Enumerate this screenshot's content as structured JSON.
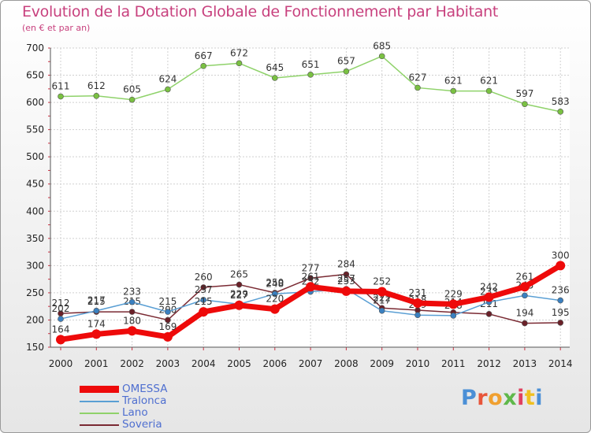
{
  "title": "Evolution de la Dotation Globale de Fonctionnement par Habitant",
  "subtitle": "(en € et par an)",
  "brand": "Proxiti",
  "brand_colors": [
    "#4a8fd6",
    "#e8553a",
    "#f0a030",
    "#5fb84a",
    "#e04060",
    "#f0c020",
    "#4a8fd6"
  ],
  "chart_data": {
    "type": "line",
    "x": [
      "2000",
      "2001",
      "2002",
      "2003",
      "2004",
      "2005",
      "2006",
      "2007",
      "2008",
      "2009",
      "2010",
      "2011",
      "2012",
      "2013",
      "2014"
    ],
    "ylim": [
      150,
      700
    ],
    "yticks": [
      150,
      200,
      250,
      300,
      350,
      400,
      450,
      500,
      550,
      600,
      650,
      700
    ],
    "grid": true,
    "legend_position": "bottom-left",
    "series": [
      {
        "name": "Lano",
        "color": "#8fd26a",
        "marker": "#7ac142",
        "values": [
          611,
          612,
          605,
          624,
          667,
          672,
          645,
          651,
          657,
          685,
          627,
          621,
          621,
          597,
          583
        ]
      },
      {
        "name": "Soveria",
        "color": "#7a2a33",
        "marker": "#6a2028",
        "values": [
          212,
          215,
          215,
          200,
          260,
          265,
          250,
          277,
          284,
          222,
          218,
          214,
          211,
          194,
          195
        ]
      },
      {
        "name": "Tralonca",
        "color": "#5a9fd4",
        "marker": "#3a80c0",
        "values": [
          202,
          217,
          233,
          215,
          237,
          229,
          248,
          252,
          257,
          217,
          209,
          208,
          233,
          245,
          236
        ]
      },
      {
        "name": "OMESSA",
        "color": "#ee0a0a",
        "marker": "#ee0a0a",
        "values": [
          164,
          174,
          180,
          169,
          215,
          227,
          220,
          261,
          253,
          252,
          231,
          229,
          242,
          261,
          300
        ]
      }
    ]
  }
}
